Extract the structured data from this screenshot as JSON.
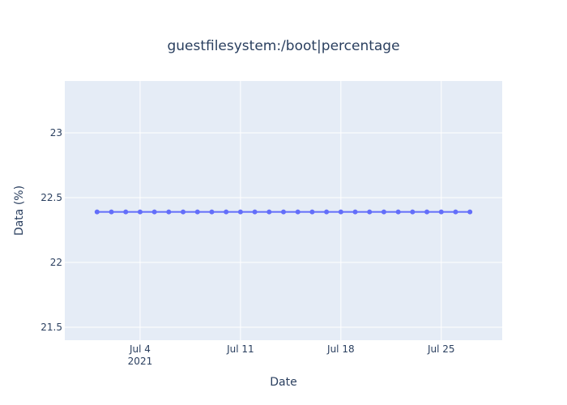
{
  "chart_data": {
    "type": "line",
    "title": "guestfilesystem:/boot|percentage",
    "xlabel": "Date",
    "ylabel": "Data (%)",
    "x_range": [
      "2021-06-28T18:00",
      "2021-07-29T06:00"
    ],
    "ylim": [
      21.4,
      23.4
    ],
    "grid": true,
    "y_ticks": [
      {
        "value": 21.5,
        "label": "21.5"
      },
      {
        "value": 22,
        "label": "22"
      },
      {
        "value": 22.5,
        "label": "22.5"
      },
      {
        "value": 23,
        "label": "23"
      }
    ],
    "x_ticks": [
      {
        "date": "2021-07-04",
        "label": "Jul 4",
        "sublabel": "2021"
      },
      {
        "date": "2021-07-11",
        "label": "Jul 11",
        "sublabel": ""
      },
      {
        "date": "2021-07-18",
        "label": "Jul 18",
        "sublabel": ""
      },
      {
        "date": "2021-07-25",
        "label": "Jul 25",
        "sublabel": ""
      }
    ],
    "series": [
      {
        "color": "#636efa",
        "x": [
          "2021-07-01",
          "2021-07-02",
          "2021-07-03",
          "2021-07-04",
          "2021-07-05",
          "2021-07-06",
          "2021-07-07",
          "2021-07-08",
          "2021-07-09",
          "2021-07-10",
          "2021-07-11",
          "2021-07-12",
          "2021-07-13",
          "2021-07-14",
          "2021-07-15",
          "2021-07-16",
          "2021-07-17",
          "2021-07-18",
          "2021-07-19",
          "2021-07-20",
          "2021-07-21",
          "2021-07-22",
          "2021-07-23",
          "2021-07-24",
          "2021-07-25",
          "2021-07-26",
          "2021-07-27"
        ],
        "y": [
          22.39,
          22.39,
          22.39,
          22.39,
          22.39,
          22.39,
          22.39,
          22.39,
          22.39,
          22.39,
          22.39,
          22.39,
          22.39,
          22.39,
          22.39,
          22.39,
          22.39,
          22.39,
          22.39,
          22.39,
          22.39,
          22.39,
          22.39,
          22.39,
          22.39,
          22.39,
          22.39
        ]
      }
    ]
  },
  "colors": {
    "plot_background": "#e5ecf6",
    "grid": "#ffffff",
    "text": "#2a3f5f"
  }
}
